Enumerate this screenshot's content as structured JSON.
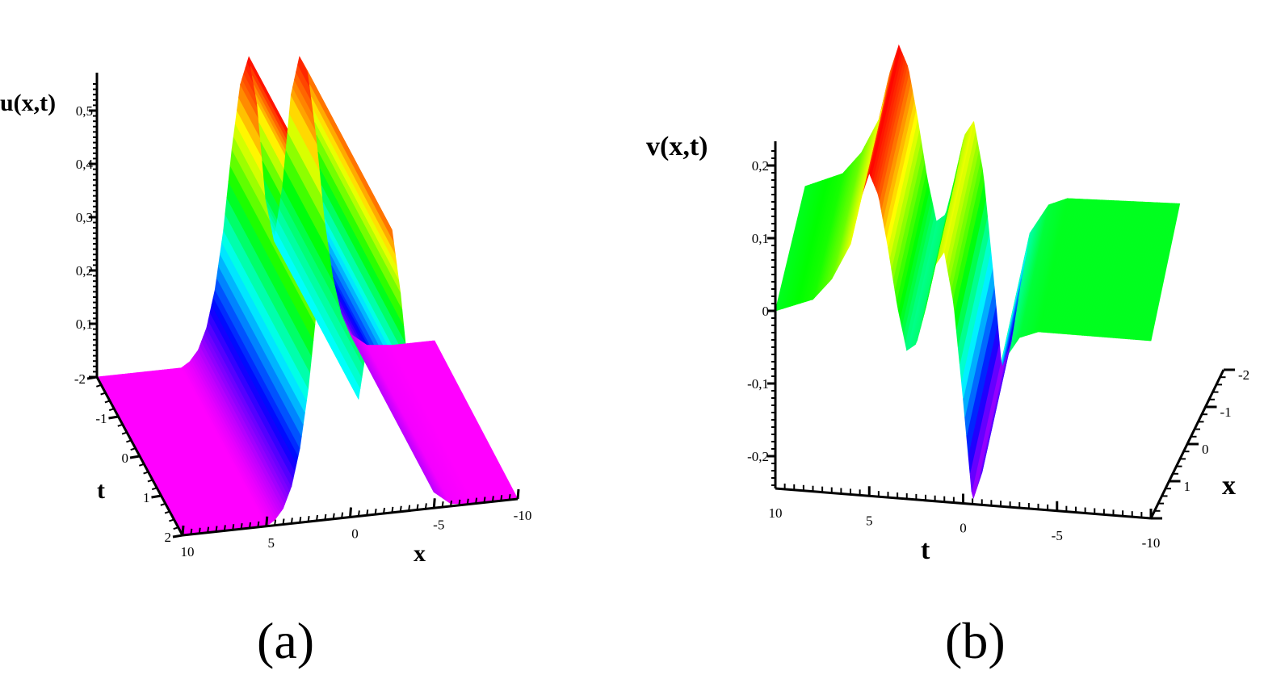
{
  "chart_data": [
    {
      "type": "surface",
      "caption": "(a)",
      "zlabel": "u(x,t)",
      "xlabel": "x",
      "tlabel": "t",
      "z_ticks": [
        "0,1",
        "0,2",
        "0,3",
        "0,4",
        "0,5"
      ],
      "t_ticks": [
        "-2",
        "-1",
        "0",
        "1",
        "2"
      ],
      "x_ticks": [
        "10",
        "5",
        "0",
        "-5",
        "-10"
      ],
      "x_range": [
        -10,
        10
      ],
      "t_range": [
        -2,
        2
      ],
      "z_range": [
        0,
        0.55
      ],
      "profile": {
        "x": [
          -10,
          -7.5,
          -6,
          -5,
          -4.5,
          -4,
          -3.5,
          -3,
          -2.5,
          -2,
          -1.5,
          -1,
          -0.5,
          0,
          0.5,
          1,
          1.5,
          2,
          2.5,
          3,
          3.5,
          4,
          4.5,
          5,
          6,
          7.5,
          10
        ],
        "u": [
          0.0,
          0.0,
          0.005,
          0.03,
          0.07,
          0.14,
          0.25,
          0.41,
          0.53,
          0.56,
          0.49,
          0.32,
          0.22,
          0.3,
          0.48,
          0.57,
          0.52,
          0.4,
          0.25,
          0.14,
          0.07,
          0.03,
          0.01,
          0.0,
          0.0,
          0.0,
          0.0
        ]
      },
      "colormap": "hue",
      "grid": false
    },
    {
      "type": "surface",
      "caption": "(b)",
      "zlabel": "v(x,t)",
      "xlabel": "x",
      "tlabel": "t",
      "z_ticks": [
        "-0,2",
        "-0,1",
        "0",
        "0,1",
        "0,2"
      ],
      "t_ticks": [
        "10",
        "5",
        "0",
        "-5",
        "-10"
      ],
      "x_ticks": [
        "-2",
        "-1",
        "0",
        "1"
      ],
      "t_range": [
        -10,
        10
      ],
      "x_range": [
        -2,
        2
      ],
      "z_range": [
        -0.25,
        0.22
      ],
      "profile": {
        "t": [
          10,
          8,
          7,
          6,
          5.5,
          5,
          4.5,
          4,
          3.5,
          3,
          2.5,
          2,
          1.5,
          1,
          0.5,
          0,
          -0.5,
          -1,
          -1.5,
          -2,
          -3,
          -4,
          -5,
          -7,
          -10
        ],
        "v": [
          0.0,
          0.02,
          0.05,
          0.1,
          0.16,
          0.2,
          0.17,
          0.1,
          0.02,
          -0.04,
          -0.03,
          0.02,
          0.08,
          0.1,
          0.03,
          -0.1,
          -0.24,
          -0.2,
          -0.12,
          -0.05,
          -0.01,
          0.0,
          0.0,
          0.0,
          0.0
        ]
      },
      "colormap": "hue",
      "grid": false
    }
  ]
}
